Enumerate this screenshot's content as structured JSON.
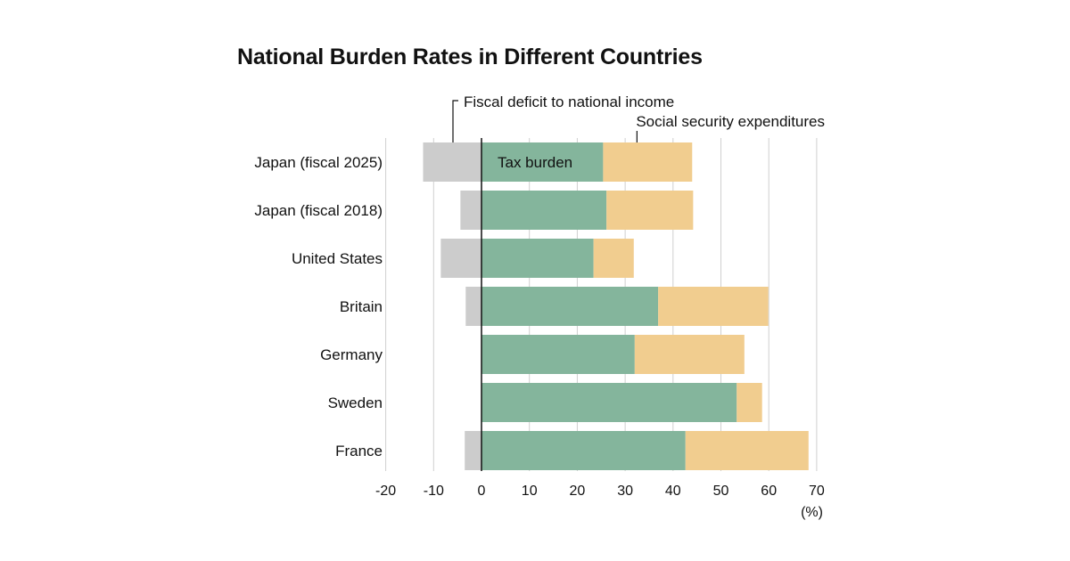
{
  "chart_data": {
    "type": "bar",
    "orientation": "horizontal",
    "stacked": true,
    "title": "National Burden Rates in Different Countries",
    "unit_label": "(%)",
    "xlim": [
      -20,
      70
    ],
    "x_ticks": [
      -20,
      -10,
      0,
      10,
      20,
      30,
      40,
      50,
      60,
      70
    ],
    "grid": true,
    "categories": [
      "Japan (fiscal 2025)",
      "Japan (fiscal 2018)",
      "United States",
      "Britain",
      "Germany",
      "Sweden",
      "France"
    ],
    "series": [
      {
        "name": "Fiscal deficit to national income",
        "color": "#cccccc",
        "values": [
          -12.2,
          -4.4,
          -8.5,
          -3.3,
          0,
          0,
          -3.5
        ]
      },
      {
        "name": "Tax burden",
        "color": "#84b59c",
        "values": [
          25.4,
          26.1,
          23.4,
          36.9,
          32.0,
          53.3,
          42.6
        ]
      },
      {
        "name": "Social security expenditures",
        "color": "#f1cd8f",
        "values": [
          18.6,
          18.1,
          8.4,
          23.0,
          22.9,
          5.3,
          25.7
        ]
      }
    ],
    "annotations": {
      "deficit": "Fiscal deficit to national income",
      "social": "Social security expenditures",
      "tax": "Tax burden"
    }
  }
}
